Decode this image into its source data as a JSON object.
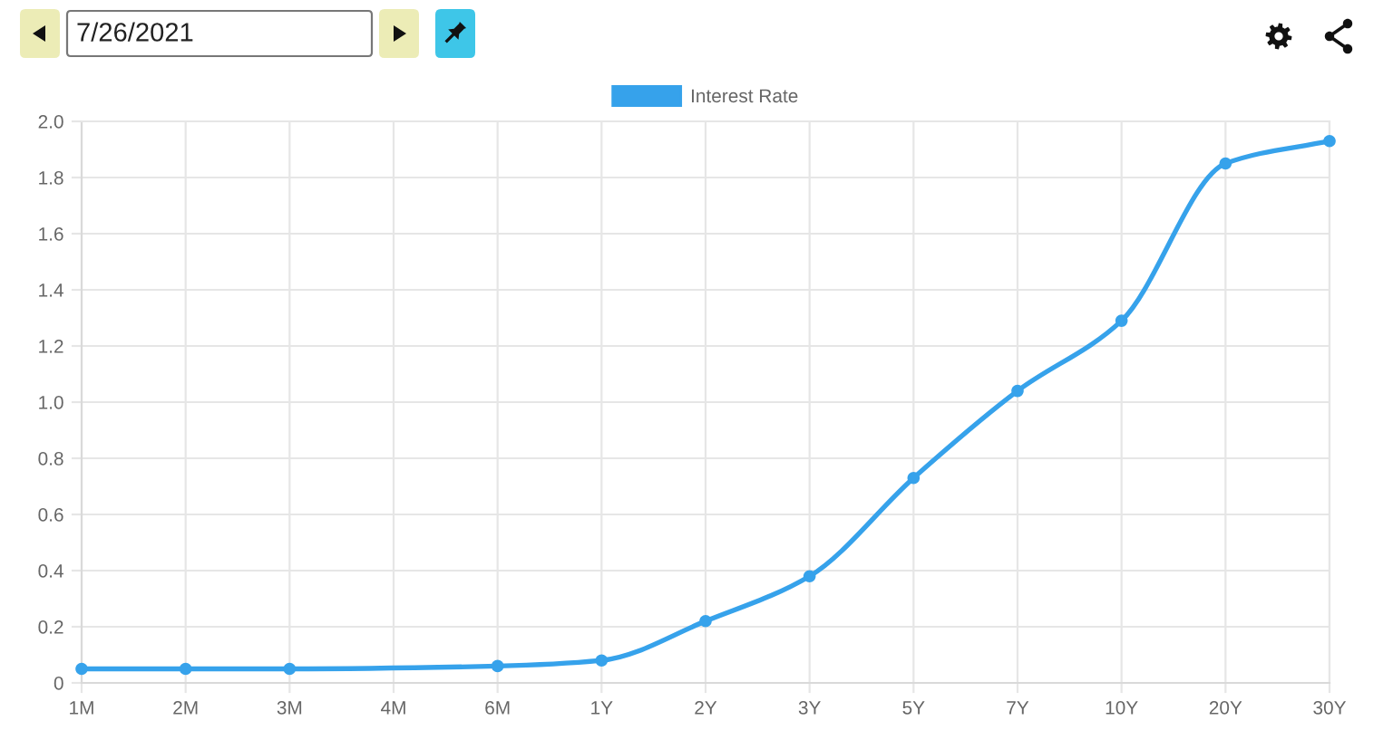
{
  "chart_data": {
    "type": "line",
    "categories": [
      "1M",
      "2M",
      "3M",
      "4M",
      "6M",
      "1Y",
      "2Y",
      "3Y",
      "5Y",
      "7Y",
      "10Y",
      "20Y",
      "30Y"
    ],
    "series": [
      {
        "name": "Interest Rate",
        "color": "#36a2eb",
        "values": [
          0.05,
          0.05,
          0.05,
          null,
          0.06,
          0.08,
          0.22,
          0.38,
          0.73,
          1.04,
          1.29,
          1.85,
          1.93
        ]
      }
    ],
    "ylim": [
      0,
      2
    ],
    "yticks": [
      0,
      0.2,
      0.4,
      0.6,
      0.8,
      {
        "value": 1,
        "label": "1.0"
      },
      1.2,
      1.4,
      1.6,
      1.8,
      {
        "value": 2,
        "label": "2.0"
      }
    ],
    "grid": true,
    "legend": "top",
    "marker": "circle",
    "line_style": "solid",
    "annotations": [
      "7/26/2021"
    ]
  }
}
